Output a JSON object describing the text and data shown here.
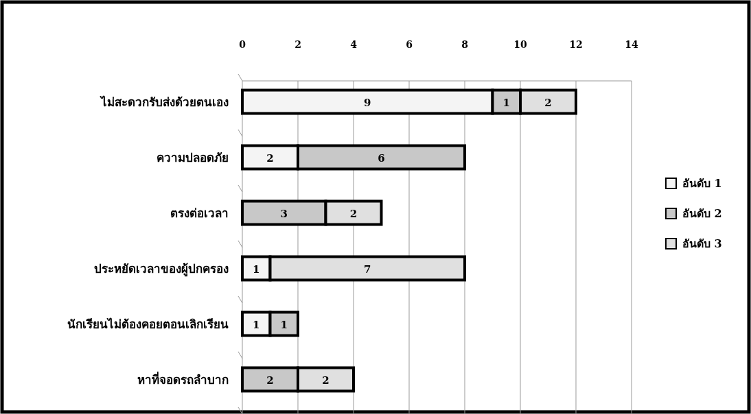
{
  "chart_data": {
    "type": "bar",
    "orientation": "horizontal",
    "stacked": true,
    "categories": [
      "ไม่สะดวกรับส่งด้วยตนเอง",
      "ความปลอดภัย",
      "ตรงต่อเวลา",
      "ประหยัดเวลาของผู้ปกครอง",
      "นักเรียนไม่ต้องคอยตอนเลิกเรียน",
      "หาที่จอดรถลำบาก"
    ],
    "series": [
      {
        "name": "อันดับ 1",
        "color": "#f4f4f4",
        "values": [
          9,
          2,
          null,
          1,
          1,
          null
        ]
      },
      {
        "name": "อันดับ 2",
        "color": "#c8c8c8",
        "values": [
          1,
          6,
          3,
          null,
          1,
          2
        ]
      },
      {
        "name": "อันดับ 3",
        "color": "#e0e0e0",
        "values": [
          2,
          null,
          2,
          7,
          null,
          2
        ]
      }
    ],
    "xlim": [
      0,
      14
    ],
    "xticks": [
      0,
      2,
      4,
      6,
      8,
      10,
      12,
      14
    ],
    "grid": "x",
    "legend": "right",
    "data_labels": true
  }
}
